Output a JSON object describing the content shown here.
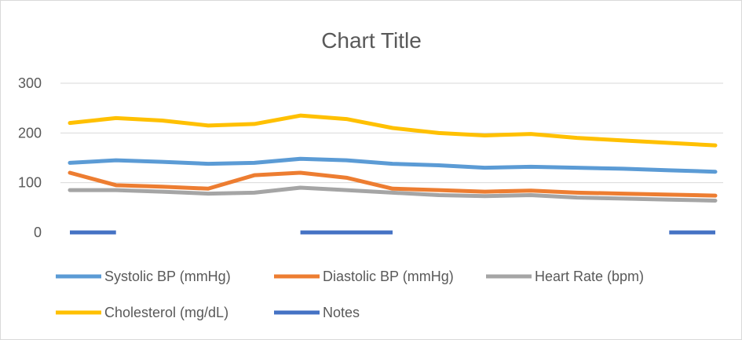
{
  "chart_data": {
    "type": "line",
    "title": "Chart Title",
    "ylim": [
      0,
      300
    ],
    "yticks": [
      0,
      100,
      200,
      300
    ],
    "grid": true,
    "legend_position": "bottom",
    "x": [
      1,
      2,
      3,
      4,
      5,
      6,
      7,
      8,
      9,
      10,
      11,
      12,
      13,
      14,
      15
    ],
    "series": [
      {
        "name": "Systolic BP (mmHg)",
        "color": "#5b9bd5",
        "values": [
          140,
          145,
          142,
          138,
          140,
          148,
          145,
          138,
          135,
          130,
          132,
          130,
          128,
          125,
          122
        ]
      },
      {
        "name": "Diastolic BP (mmHg)",
        "color": "#ed7d31",
        "values": [
          120,
          95,
          92,
          88,
          115,
          120,
          110,
          88,
          85,
          82,
          84,
          80,
          78,
          76,
          74
        ]
      },
      {
        "name": "Heart Rate (bpm)",
        "color": "#a5a5a5",
        "values": [
          85,
          85,
          82,
          78,
          80,
          90,
          85,
          80,
          75,
          73,
          75,
          70,
          68,
          66,
          64
        ]
      },
      {
        "name": "Cholesterol (mg/dL)",
        "color": "#ffc000",
        "values": [
          220,
          230,
          225,
          215,
          218,
          235,
          228,
          210,
          200,
          195,
          198,
          190,
          185,
          180,
          175
        ]
      },
      {
        "name": "Notes",
        "color": "#4472c4",
        "segments": [
          [
            1,
            2
          ],
          [
            6,
            8
          ],
          [
            14,
            15
          ]
        ],
        "value": 0
      }
    ]
  }
}
